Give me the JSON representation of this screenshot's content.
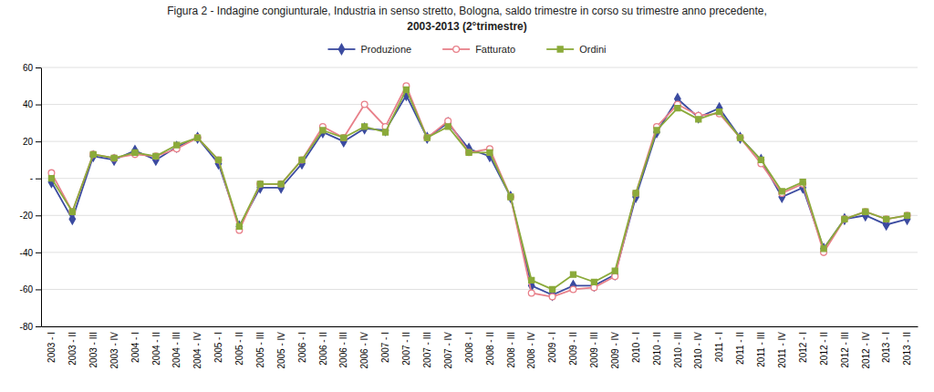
{
  "chart_data": {
    "type": "line",
    "title": "Figura 2 - Indagine congiunturale, Industria in senso stretto, Bologna, saldo trimestre in corso su trimestre anno precedente,",
    "subtitle": "2003-2013 (2°trimestre)",
    "categories": [
      "2003 - I",
      "2003 - II",
      "2003 - III",
      "2003 - IV",
      "2004 - I",
      "2004 - II",
      "2004 - III",
      "2004 - IV",
      "2005 - I",
      "2005 - II",
      "2005 - III",
      "2005 - IV",
      "2006 - I",
      "2006 - II",
      "2006 - III",
      "2006 - IV",
      "2007 - I",
      "2007 - II",
      "2007 - III",
      "2007 - IV",
      "2008 - I",
      "2008 - II",
      "2008 - III",
      "2008 - IV",
      "2009 - I",
      "2009 - II",
      "2009 - III",
      "2009 - IV",
      "2010 - I",
      "2010 - II",
      "2010 - III",
      "2010 - IV",
      "2011 - I",
      "2011 - II",
      "2011 - III",
      "2011 - IV",
      "2012 - I",
      "2012 - II",
      "2012 - III",
      "2012 - IV",
      "2013 - I",
      "2013 - II"
    ],
    "series": [
      {
        "name": "Produzione",
        "color": "#3B4BA0",
        "marker": "diamond",
        "values": [
          -2,
          -22,
          12,
          10,
          15,
          10,
          17,
          22,
          8,
          -26,
          -5,
          -5,
          8,
          25,
          20,
          27,
          26,
          45,
          22,
          30,
          16,
          12,
          -10,
          -58,
          -63,
          -58,
          -58,
          -52,
          -10,
          25,
          43,
          33,
          38,
          22,
          10,
          -10,
          -5,
          -38,
          -22,
          -20,
          -25,
          -22
        ]
      },
      {
        "name": "Fatturato",
        "color": "#E8808A",
        "marker": "circle-open",
        "values": [
          3,
          -18,
          13,
          11,
          13,
          12,
          16,
          22,
          10,
          -28,
          -3,
          -3,
          10,
          28,
          22,
          40,
          28,
          50,
          22,
          31,
          14,
          16,
          -10,
          -62,
          -64,
          -60,
          -59,
          -53,
          -8,
          28,
          40,
          34,
          35,
          22,
          8,
          -8,
          -3,
          -40,
          -22,
          -18,
          -22,
          -20
        ]
      },
      {
        "name": "Ordini",
        "color": "#8BAA3A",
        "marker": "square",
        "values": [
          0,
          -18,
          13,
          11,
          14,
          12,
          18,
          22,
          10,
          -26,
          -3,
          -3,
          10,
          26,
          22,
          28,
          25,
          48,
          22,
          28,
          14,
          14,
          -10,
          -55,
          -60,
          -52,
          -56,
          -50,
          -8,
          26,
          38,
          32,
          36,
          22,
          10,
          -7,
          -2,
          -38,
          -22,
          -18,
          -22,
          -20
        ]
      }
    ],
    "ylim": [
      -80,
      60
    ],
    "yticks": [
      -80,
      -60,
      -40,
      -20,
      {
        "value": 0,
        "label": "-"
      },
      20,
      40,
      60
    ],
    "grid": true,
    "legend": "top"
  }
}
